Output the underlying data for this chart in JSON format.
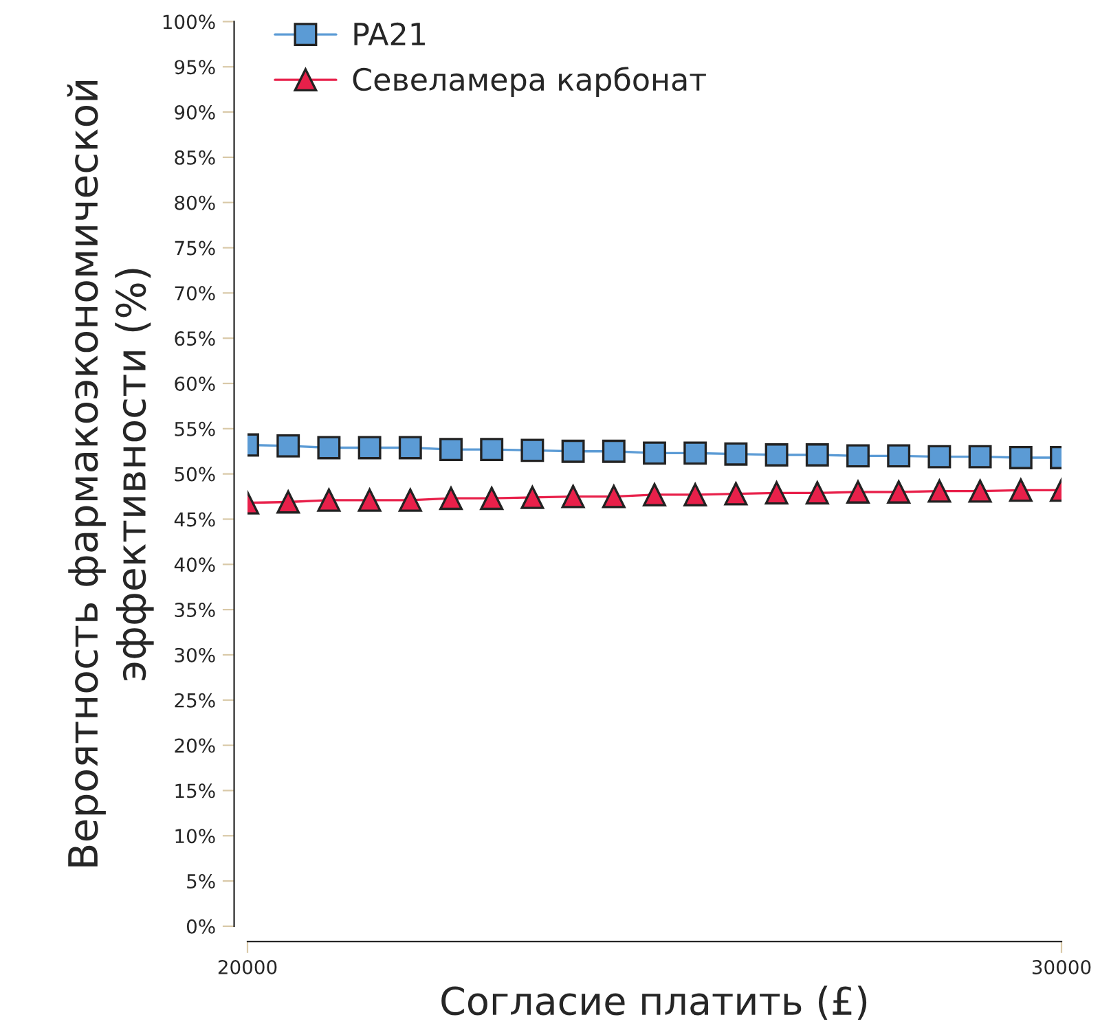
{
  "chart_data": {
    "type": "line",
    "xlabel": "Согласие платить (£)",
    "ylabel": "Вероятность фармакоэкономической\nэффективности (%)",
    "x": [
      20000,
      20500,
      21000,
      21500,
      22000,
      22500,
      23000,
      23500,
      24000,
      24500,
      25000,
      25500,
      26000,
      26500,
      27000,
      27500,
      28000,
      28500,
      29000,
      29500,
      30000
    ],
    "series": [
      {
        "name": "PA21",
        "color": "#5b9bd5",
        "marker": "square",
        "values": [
          53.2,
          53.1,
          52.9,
          52.9,
          52.9,
          52.7,
          52.7,
          52.6,
          52.5,
          52.5,
          52.3,
          52.3,
          52.2,
          52.1,
          52.1,
          52.0,
          52.0,
          51.9,
          51.9,
          51.8,
          51.8
        ]
      },
      {
        "name": "Севеламера карбонат",
        "color": "#e8204a",
        "marker": "triangle",
        "values": [
          46.8,
          46.9,
          47.1,
          47.1,
          47.1,
          47.3,
          47.3,
          47.4,
          47.5,
          47.5,
          47.7,
          47.7,
          47.8,
          47.9,
          47.9,
          48.0,
          48.0,
          48.1,
          48.1,
          48.2,
          48.2
        ]
      }
    ],
    "xlim": [
      20000,
      30000
    ],
    "xticks": [
      20000,
      30000
    ],
    "ylim": [
      0,
      100
    ],
    "yticks": [
      {
        "value": 0,
        "label": "0%"
      },
      {
        "value": 5,
        "label": "5%"
      },
      {
        "value": 10,
        "label": "10%"
      },
      {
        "value": 15,
        "label": "15%"
      },
      {
        "value": 20,
        "label": "20%"
      },
      {
        "value": 25,
        "label": "25%"
      },
      {
        "value": 30,
        "label": "30%"
      },
      {
        "value": 35,
        "label": "35%"
      },
      {
        "value": 40,
        "label": "40%"
      },
      {
        "value": 45,
        "label": "45%"
      },
      {
        "value": 50,
        "label": "50%"
      },
      {
        "value": 55,
        "label": "55%"
      },
      {
        "value": 60,
        "label": "60%"
      },
      {
        "value": 65,
        "label": "65%"
      },
      {
        "value": 70,
        "label": "70%"
      },
      {
        "value": 75,
        "label": "75%"
      },
      {
        "value": 80,
        "label": "80%"
      },
      {
        "value": 85,
        "label": "85%"
      },
      {
        "value": 90,
        "label": "90%"
      },
      {
        "value": 95,
        "label": "95%"
      },
      {
        "value": 100,
        "label": "100%"
      }
    ],
    "grid": false,
    "legend": "top left",
    "line_style": "solid"
  }
}
